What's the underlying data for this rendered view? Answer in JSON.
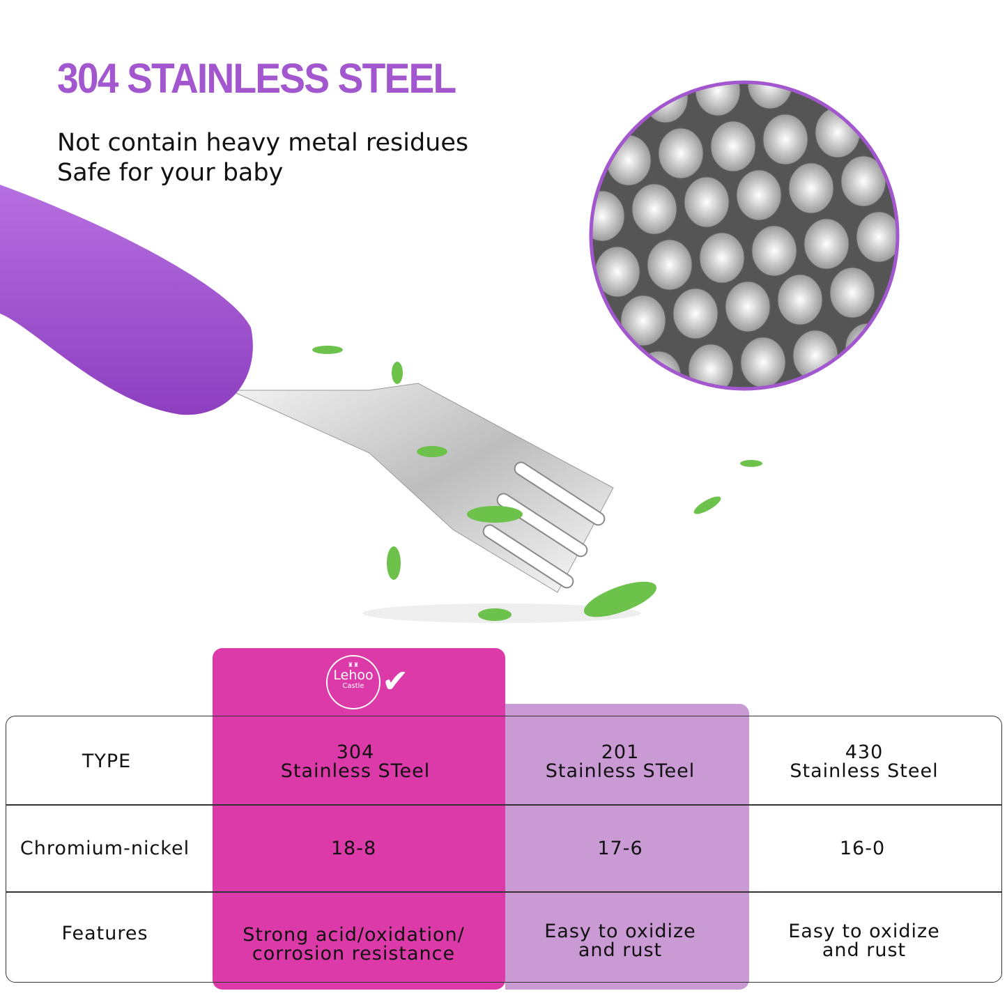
{
  "heading": "304 STAINLESS STEEL",
  "subtitle_lines": [
    "Not contain heavy metal residues",
    "Safe for your baby"
  ],
  "brand": {
    "logo_name": "Lehoo",
    "logo_sub": "Castle"
  },
  "colors": {
    "title": "#a257cf",
    "highlight": "#dc3aa8",
    "secondary": "#c99ad4"
  },
  "table": {
    "row_headers": [
      "TYPE",
      "Chromium-nickel",
      "Features"
    ],
    "columns": [
      {
        "type_line1": "304",
        "type_line2": "Stainless STeel",
        "ratio": "18-8",
        "features_line1": "Strong acid/oxidation/",
        "features_line2": "corrosion resistance",
        "recommended": true
      },
      {
        "type_line1": "201",
        "type_line2": "Stainless STeel",
        "ratio": "17-6",
        "features_line1": "Easy to oxidize",
        "features_line2": "and rust"
      },
      {
        "type_line1": "430",
        "type_line2": "Stainless Steel",
        "ratio": "16-0",
        "features_line1": "Easy to oxidize",
        "features_line2": "and rust"
      }
    ]
  }
}
